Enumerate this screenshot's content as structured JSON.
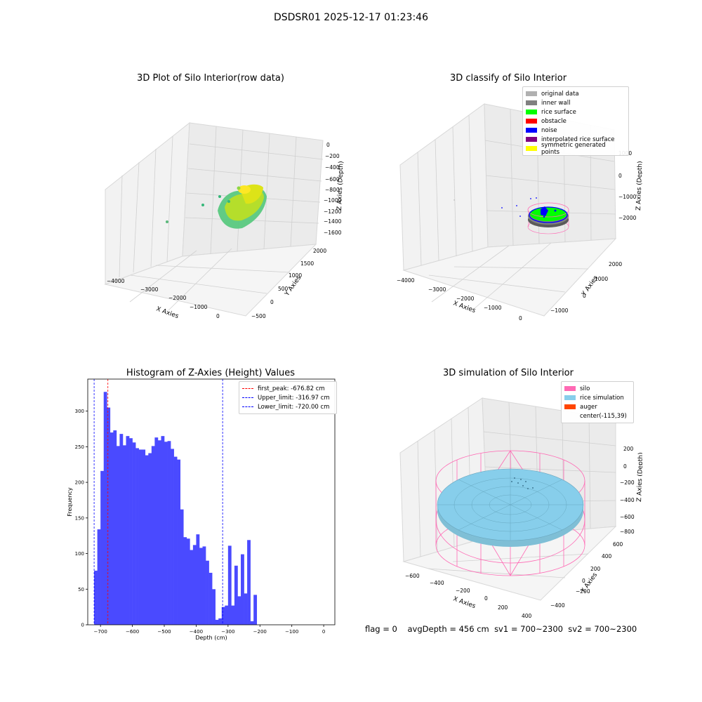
{
  "suptitle": "DSDSR01 2025-12-17 01:23:46",
  "panels": {
    "raw": {
      "title": "3D Plot of Silo Interior(row data)",
      "xlabel": "X Axies",
      "ylabel": "Y Axies",
      "zlabel": "Z Axies (Depth)",
      "xticks": [
        "−4000",
        "−3000",
        "−2000",
        "−1000",
        "0"
      ],
      "yticks": [
        "−500",
        "0",
        "500",
        "1000",
        "1500",
        "2000"
      ],
      "zticks": [
        "0",
        "−200",
        "−400",
        "−600",
        "−800",
        "−1000",
        "−1200",
        "−1400",
        "−1600"
      ]
    },
    "classify": {
      "title": "3D classify of Silo Interior",
      "xlabel": "X Axies",
      "ylabel": "Y Axies",
      "zlabel": "Z Axies (Depth)",
      "xticks": [
        "−4000",
        "−3000",
        "−2000",
        "−1000",
        "0"
      ],
      "yticks": [
        "−1000",
        "0",
        "1000",
        "2000"
      ],
      "zticks": [
        "1000",
        "0",
        "−1000",
        "−2000"
      ],
      "legend": [
        {
          "label": "original data",
          "color": "#b0b0b0"
        },
        {
          "label": "inner wall",
          "color": "#808080"
        },
        {
          "label": "rice surface",
          "color": "#00ff00"
        },
        {
          "label": "obstacle",
          "color": "#ff0000"
        },
        {
          "label": "noise",
          "color": "#0000ff"
        },
        {
          "label": "interpolated rice surface",
          "color": "#800080"
        },
        {
          "label": "symmetric generated points",
          "color": "#ffff00"
        }
      ]
    },
    "simulation": {
      "title": "3D simulation of Silo Interior",
      "xlabel": "X Axies",
      "ylabel": "Y Axies",
      "zlabel": "Z Axies (Depth)",
      "xticks": [
        "−600",
        "−400",
        "−200",
        "0",
        "200",
        "400"
      ],
      "yticks": [
        "−400",
        "−200",
        "0",
        "200",
        "400",
        "600"
      ],
      "zticks": [
        "200",
        "0",
        "−200",
        "−400",
        "−600",
        "−800"
      ],
      "legend": [
        {
          "label": "silo",
          "color": "#ff69b4"
        },
        {
          "label": "rice simulation",
          "color": "#87ceeb"
        },
        {
          "label": "auger",
          "color": "#ff4500"
        },
        {
          "label": "center(-115,39)",
          "color": ""
        }
      ]
    }
  },
  "footer": {
    "flag": "flag = 0",
    "avg_depth": "avgDepth = 456 cm",
    "sv1": "sv1 = 700~2300",
    "sv2": "sv2 = 700~2300"
  },
  "chart_data": {
    "type": "bar",
    "title": "Histogram of Z-Axies (Height) Values",
    "xlabel": "Depth (cm)",
    "ylabel": "Frequency",
    "xlim": [
      -740,
      35
    ],
    "ylim": [
      0,
      345
    ],
    "bin_width": 10,
    "bin_starts": [
      -720,
      -710,
      -700,
      -690,
      -680,
      -670,
      -660,
      -650,
      -640,
      -630,
      -620,
      -610,
      -600,
      -590,
      -580,
      -570,
      -560,
      -550,
      -540,
      -530,
      -520,
      -510,
      -500,
      -490,
      -480,
      -470,
      -460,
      -450,
      -440,
      -430,
      -420,
      -410,
      -400,
      -390,
      -380,
      -370,
      -360,
      -350,
      -340,
      -330,
      -320,
      -310,
      -300,
      -290,
      -280,
      -270,
      -260,
      -250,
      -240,
      -230,
      -220,
      -210,
      -200,
      -190,
      -180,
      -170,
      -160,
      -150,
      -140,
      -130,
      -120,
      -110,
      -100,
      -90,
      -80,
      -70,
      -60,
      -50,
      -40,
      -30,
      -20,
      -10,
      0
    ],
    "values": [
      76,
      134,
      216,
      327,
      305,
      270,
      273,
      251,
      268,
      252,
      265,
      262,
      256,
      248,
      246,
      246,
      238,
      241,
      251,
      263,
      259,
      265,
      257,
      258,
      247,
      236,
      232,
      162,
      123,
      121,
      105,
      112,
      127,
      108,
      110,
      90,
      73,
      50,
      7,
      9,
      25,
      27,
      111,
      27,
      83,
      40,
      99,
      44,
      119,
      5,
      42,
      0,
      0,
      0,
      0,
      0,
      0,
      0,
      0,
      0,
      0,
      0,
      0,
      0,
      0,
      0,
      0,
      0,
      0,
      0,
      0,
      0,
      0
    ],
    "xticks": [
      -700,
      -600,
      -500,
      -400,
      -300,
      -200,
      -100,
      0
    ],
    "yticks": [
      0,
      50,
      100,
      150,
      200,
      250,
      300
    ],
    "color": "#4a4aff",
    "vlines": [
      {
        "name": "first_peak: -676.82 cm",
        "x": -676.82,
        "color": "#ff0000"
      },
      {
        "name": "Upper_limit: -316.97 cm",
        "x": -316.97,
        "color": "#0000ff"
      },
      {
        "name": "Lower_limit: -720.00 cm",
        "x": -720.0,
        "color": "#0000ff"
      }
    ],
    "legend_position": "top-right",
    "grid": false
  }
}
